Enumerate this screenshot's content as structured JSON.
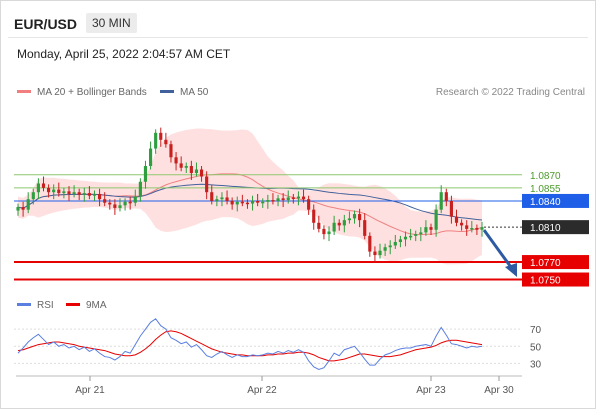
{
  "header": {
    "symbol": "EUR/USD",
    "timeframe": "30 MIN",
    "timestamp": "Monday, April 25, 2022 2:04:57 AM CET"
  },
  "legend": {
    "ma20": "MA 20 + Bollinger Bands",
    "ma50": "MA 50",
    "credit": "Research © 2022 Trading Central",
    "rsi": "RSI",
    "ma9": "9MA"
  },
  "colors": {
    "up": "#2e9e3f",
    "down": "#c8201f",
    "bollinger": "#ffdadb",
    "ma20": "#f08080",
    "ma50": "#41619c",
    "resistance": "#8cc86e",
    "pivot": "#1f5fe8",
    "support": "#e60000",
    "last": "#2b2b2b",
    "rsi": "#5b7fe0",
    "rsi_ma": "#e60000",
    "arrow": "#2d5aa3"
  },
  "chart_data": [
    {
      "type": "candlestick",
      "title": "EUR/USD",
      "x_ticks": [
        "Apr 21",
        "Apr 22",
        "Apr 23",
        "Apr 30"
      ],
      "ylim": [
        1.0738,
        1.0935
      ],
      "levels": [
        {
          "value": 1.087,
          "label": "1.0870",
          "kind": "resistance"
        },
        {
          "value": 1.0855,
          "label": "1.0855",
          "kind": "resistance"
        },
        {
          "value": 1.084,
          "label": "1.0840",
          "kind": "pivot"
        },
        {
          "value": 1.081,
          "label": "1.0810",
          "kind": "last"
        },
        {
          "value": 1.077,
          "label": "1.0770",
          "kind": "support"
        },
        {
          "value": 1.075,
          "label": "1.0750",
          "kind": "support"
        }
      ],
      "closes": [
        1.0833,
        1.083,
        1.0842,
        1.085,
        1.086,
        1.0855,
        1.085,
        1.0853,
        1.0849,
        1.0851,
        1.0848,
        1.085,
        1.0847,
        1.0849,
        1.0846,
        1.0848,
        1.0842,
        1.0838,
        1.0836,
        1.0832,
        1.0835,
        1.0839,
        1.0838,
        1.0845,
        1.0862,
        1.088,
        1.09,
        1.0918,
        1.091,
        1.0905,
        1.089,
        1.0883,
        1.0878,
        1.088,
        1.0872,
        1.0876,
        1.0868,
        1.085,
        1.084,
        1.0842,
        1.0844,
        1.084,
        1.0836,
        1.0839,
        1.0838,
        1.0837,
        1.084,
        1.0838,
        1.0839,
        1.0841,
        1.084,
        1.0843,
        1.0841,
        1.0844,
        1.0843,
        1.0845,
        1.0842,
        1.083,
        1.0815,
        1.0808,
        1.0802,
        1.0805,
        1.0815,
        1.0812,
        1.0818,
        1.082,
        1.0825,
        1.0818,
        1.08,
        1.0782,
        1.0778,
        1.0783,
        1.0787,
        1.0789,
        1.0793,
        1.0796,
        1.0799,
        1.08,
        1.0802,
        1.0804,
        1.081,
        1.0807,
        1.083,
        1.085,
        1.084,
        1.0822,
        1.0815,
        1.0812,
        1.0808,
        1.0809,
        1.0807,
        1.081
      ],
      "ma20_label": "MA 20 + Bollinger Bands",
      "ma50_label": "MA 50"
    },
    {
      "type": "line",
      "title": "RSI",
      "y_ticks": [
        70,
        50,
        30
      ],
      "ylim": [
        20,
        83
      ],
      "series": [
        {
          "name": "RSI",
          "values": [
            42,
            48,
            55,
            60,
            64,
            58,
            52,
            55,
            50,
            52,
            48,
            50,
            46,
            49,
            44,
            47,
            42,
            38,
            37,
            34,
            38,
            44,
            42,
            52,
            62,
            70,
            78,
            82,
            74,
            70,
            60,
            57,
            53,
            55,
            49,
            52,
            46,
            39,
            37,
            41,
            44,
            40,
            37,
            40,
            38,
            38,
            40,
            39,
            40,
            42,
            41,
            44,
            42,
            45,
            43,
            46,
            43,
            33,
            26,
            23,
            25,
            33,
            42,
            39,
            46,
            48,
            50,
            43,
            35,
            28,
            28,
            35,
            40,
            42,
            45,
            47,
            48,
            48,
            50,
            51,
            52,
            50,
            62,
            72,
            63,
            53,
            52,
            50,
            48,
            50,
            49,
            50
          ]
        },
        {
          "name": "9MA",
          "values": [
            45,
            46,
            48,
            50,
            52,
            53,
            54,
            55,
            55,
            54,
            53,
            52,
            50,
            49,
            48,
            47,
            46,
            45,
            43,
            41,
            40,
            39,
            39,
            40,
            43,
            47,
            52,
            58,
            63,
            67,
            68,
            67,
            65,
            62,
            59,
            56,
            53,
            50,
            47,
            45,
            43,
            42,
            41,
            40,
            40,
            39,
            39,
            39,
            39,
            40,
            40,
            41,
            41,
            42,
            42,
            43,
            43,
            42,
            40,
            37,
            35,
            33,
            33,
            34,
            35,
            37,
            39,
            41,
            41,
            40,
            39,
            38,
            38,
            38,
            39,
            40,
            42,
            44,
            46,
            47,
            48,
            49,
            51,
            54,
            56,
            57,
            57,
            56,
            55,
            54,
            53,
            52
          ]
        }
      ]
    }
  ]
}
